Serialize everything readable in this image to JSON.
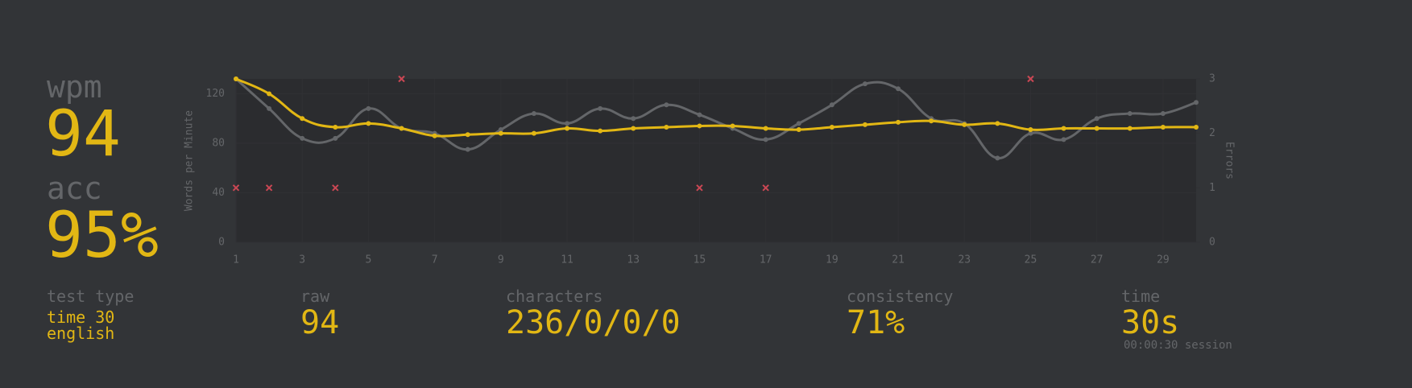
{
  "chart_data": {
    "type": "line",
    "ylabel": "Words per Minute",
    "y2label": "Errors",
    "x": [
      1,
      2,
      3,
      4,
      5,
      6,
      7,
      8,
      9,
      10,
      11,
      12,
      13,
      14,
      15,
      16,
      17,
      18,
      19,
      20,
      21,
      22,
      23,
      24,
      25,
      26,
      27,
      28,
      29,
      30
    ],
    "xlim": [
      1,
      30
    ],
    "xticks": [
      1,
      3,
      5,
      7,
      9,
      11,
      13,
      15,
      17,
      19,
      21,
      23,
      25,
      27,
      29
    ],
    "ylim": [
      0,
      132
    ],
    "yticks": [
      0,
      40,
      80,
      120
    ],
    "y2lim": [
      0,
      3
    ],
    "y2ticks": [
      0,
      1,
      2,
      3
    ],
    "grid": true,
    "series": [
      {
        "color": "#646669",
        "values": [
          132,
          108,
          84,
          84,
          108,
          92,
          88,
          75,
          91,
          104,
          96,
          108,
          100,
          111,
          103,
          92,
          83,
          96,
          111,
          128,
          124,
          100,
          96,
          68,
          88,
          83,
          100,
          104,
          104,
          113
        ]
      },
      {
        "color": "#e2b714",
        "values": [
          132,
          120,
          100,
          93,
          96,
          92,
          86,
          87,
          88,
          88,
          92,
          90,
          92,
          93,
          94,
          94,
          92,
          91,
          93,
          95,
          97,
          98,
          95,
          96,
          91,
          92,
          92,
          92,
          93,
          93
        ]
      },
      {
        "color": "#ca4754",
        "axis": "y2",
        "marker": "x",
        "values": [
          1,
          1,
          null,
          1,
          null,
          3,
          null,
          null,
          null,
          null,
          null,
          null,
          null,
          null,
          1,
          null,
          1,
          null,
          null,
          null,
          null,
          null,
          null,
          null,
          3,
          null,
          null,
          null,
          null,
          null
        ]
      }
    ]
  },
  "stats": {
    "wpm": {
      "label": "wpm",
      "value": "94"
    },
    "acc": {
      "label": "acc",
      "value": "95%"
    },
    "test_type": {
      "label": "test type",
      "lines": [
        "time 30",
        "english"
      ]
    },
    "raw": {
      "label": "raw",
      "value": "94"
    },
    "characters": {
      "label": "characters",
      "value": "236/0/0/0"
    },
    "consistency": {
      "label": "consistency",
      "value": "71%"
    },
    "time": {
      "label": "time",
      "value": "30s",
      "note": "00:00:30 session"
    }
  }
}
